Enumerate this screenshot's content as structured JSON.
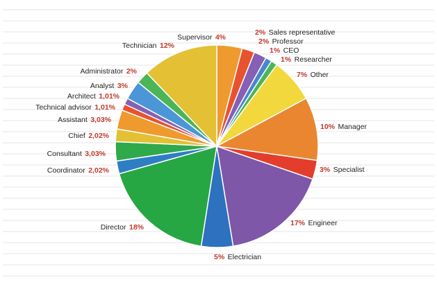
{
  "chart_data": {
    "type": "pie",
    "grid": true,
    "slices": [
      {
        "name": "Supervisor",
        "pct": "4%",
        "value": 4,
        "color": "#ee9a2e"
      },
      {
        "name": "Sales representative",
        "pct": "2%",
        "value": 2,
        "color": "#e8532f"
      },
      {
        "name": "Professor",
        "pct": "2%",
        "value": 2,
        "color": "#8560b5"
      },
      {
        "name": "CEO",
        "pct": "1%",
        "value": 1,
        "color": "#4a86cf"
      },
      {
        "name": "Researcher",
        "pct": "1%",
        "value": 1,
        "color": "#4cb556"
      },
      {
        "name": "Other",
        "pct": "7%",
        "value": 7,
        "color": "#f2d83c"
      },
      {
        "name": "Manager",
        "pct": "10%",
        "value": 10,
        "color": "#ea8630"
      },
      {
        "name": "Specialist",
        "pct": "3%",
        "value": 3,
        "color": "#e23e2b"
      },
      {
        "name": "Engineer",
        "pct": "17%",
        "value": 17,
        "color": "#7e57a8"
      },
      {
        "name": "Electrician",
        "pct": "5%",
        "value": 5,
        "color": "#2d71bf"
      },
      {
        "name": "Director",
        "pct": "18%",
        "value": 18,
        "color": "#27a644"
      },
      {
        "name": "Coordinator",
        "pct": "2,02%",
        "value": 2.02,
        "color": "#2e7ec4"
      },
      {
        "name": "Consultant",
        "pct": "3,03%",
        "value": 3.03,
        "color": "#2fa94a"
      },
      {
        "name": "Chief",
        "pct": "2,02%",
        "value": 2.02,
        "color": "#e3c034"
      },
      {
        "name": "Assistant",
        "pct": "3,03%",
        "value": 3.03,
        "color": "#ee9a2e"
      },
      {
        "name": "Technical advisor",
        "pct": "1,01%",
        "value": 1.01,
        "color": "#e8532f"
      },
      {
        "name": "Architect",
        "pct": "1,01%",
        "value": 1.01,
        "color": "#8560b5"
      },
      {
        "name": "Analyst",
        "pct": "3%",
        "value": 3,
        "color": "#4a96d6"
      },
      {
        "name": "Administrator",
        "pct": "2%",
        "value": 2,
        "color": "#4cb556"
      },
      {
        "name": "Technician",
        "pct": "12%",
        "value": 12,
        "color": "#e3c034"
      }
    ]
  }
}
